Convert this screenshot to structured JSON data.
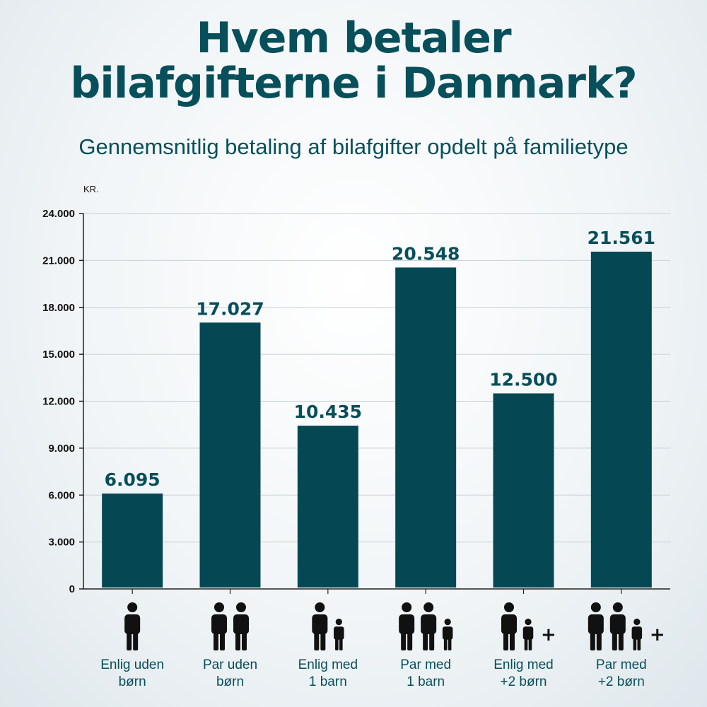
{
  "header": {
    "title_line1": "Hvem betaler",
    "title_line2": "bilafgifterne i Danmark?",
    "subtitle": "Gennemsnitlig betaling af bilafgifter opdelt på familietype"
  },
  "chart_data": {
    "type": "bar",
    "unit": "KR.",
    "categories": [
      [
        "Enlig uden",
        "børn"
      ],
      [
        "Par uden",
        "børn"
      ],
      [
        "Enlig med",
        "1 barn"
      ],
      [
        "Par med",
        "1 barn"
      ],
      [
        "Enlig med",
        "+2 børn"
      ],
      [
        "Par med",
        "+2 børn"
      ]
    ],
    "values": [
      6095,
      17027,
      10435,
      20548,
      12500,
      21561
    ],
    "value_labels": [
      "6.095",
      "17.027",
      "10.435",
      "20.548",
      "12.500",
      "21.561"
    ],
    "yticks": [
      0,
      3000,
      6000,
      9000,
      12000,
      15000,
      18000,
      21000,
      24000
    ],
    "ytick_labels": [
      "0",
      "3.000",
      "6.000",
      "9.000",
      "12.000",
      "15.000",
      "18.000",
      "21.000",
      "24.000"
    ],
    "ylim": [
      0,
      24000
    ],
    "grid": true,
    "bar_color": "#054854",
    "icons": [
      {
        "adults": 1,
        "children": 0,
        "plus": false
      },
      {
        "adults": 2,
        "children": 0,
        "plus": false
      },
      {
        "adults": 1,
        "children": 1,
        "plus": false
      },
      {
        "adults": 2,
        "children": 1,
        "plus": false
      },
      {
        "adults": 1,
        "children": 1,
        "plus": true
      },
      {
        "adults": 2,
        "children": 1,
        "plus": true
      }
    ]
  },
  "colors": {
    "title": "#074f5a",
    "bars": "#054854",
    "icons": "#111111"
  }
}
